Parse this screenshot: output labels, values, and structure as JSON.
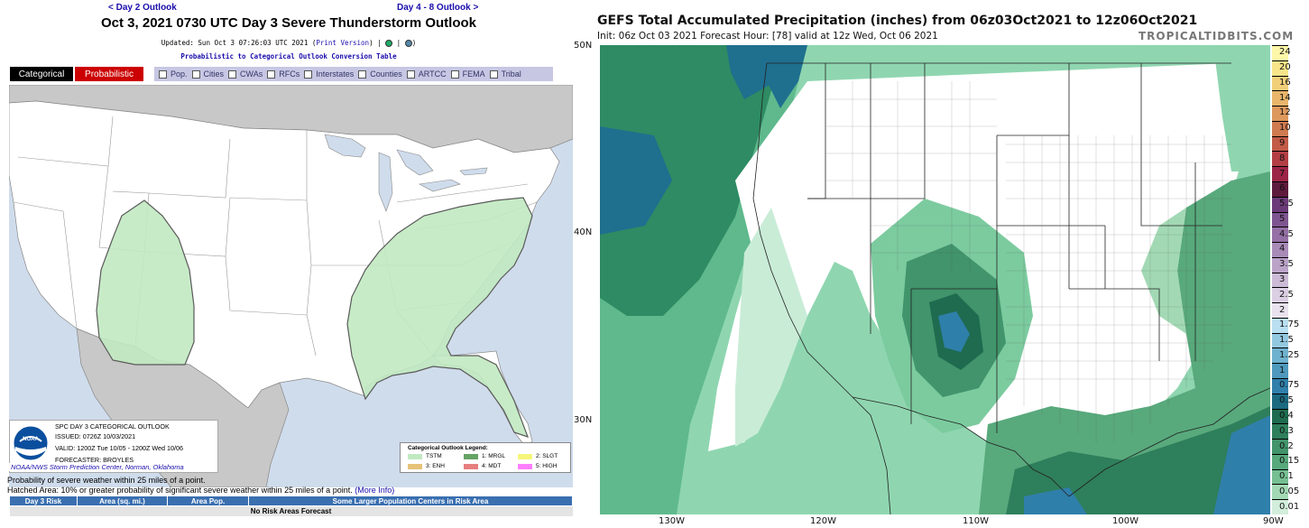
{
  "spc": {
    "prev_link": "< Day 2 Outlook",
    "next_link": "Day 4 - 8 Outlook >",
    "title": "Oct 3, 2021 0730 UTC Day 3 Severe Thunderstorm Outlook",
    "updated": "Updated: Sun Oct 3 07:26:03 UTC 2021 (",
    "print_version": "Print Version",
    "updated_tail": ")  |  ",
    "conversion_link": "Probabilistic to Categorical Outlook Conversion Table",
    "tabs": {
      "categorical": "Categorical",
      "probabilistic": "Probabilistic"
    },
    "overlays": [
      "Pop.",
      "Cities",
      "CWAs",
      "RFCs",
      "Interstates",
      "Counties",
      "ARTCC",
      "FEMA",
      "Tribal"
    ],
    "info": {
      "line1": "SPC DAY 3 CATEGORICAL OUTLOOK",
      "line2": "ISSUED: 0726Z 10/03/2021",
      "line3": "VALID: 1200Z Tue 10/05 - 1200Z Wed 10/06",
      "line4": "FORECASTER: BROYLES"
    },
    "credit": "NOAA/NWS Storm Prediction Center, Norman, Oklahoma",
    "legend": {
      "title": "Categorical Outlook Legend:",
      "items": [
        {
          "label": "TSTM",
          "color": "#c1e9c1"
        },
        {
          "label": "1: MRGL",
          "color": "#66a366"
        },
        {
          "label": "2: SLGT",
          "color": "#f6f67b"
        },
        {
          "label": "3: ENH",
          "color": "#e6c27a"
        },
        {
          "label": "4: MDT",
          "color": "#e67f7f"
        },
        {
          "label": "5: HIGH",
          "color": "#ff7fff"
        }
      ]
    },
    "prob_line1": "Probability of severe weather within 25 miles of a point.",
    "prob_line2": "Hatched Area: 10% or greater probability of significant severe weather within 25 miles of a point.",
    "more_info": "(More Info)",
    "table_headers": [
      "Day 3 Risk",
      "Area (sq. mi.)",
      "Area Pop.",
      "Some Larger Population Centers in Risk Area"
    ],
    "table_row": "No Risk Areas Forecast"
  },
  "gefs": {
    "title": "GEFS Total Accumulated Precipitation (inches) from 06z03Oct2021 to 12z06Oct2021",
    "subtitle": "Init: 06z Oct 03 2021   Forecast Hour: [78]   valid at 12z Wed, Oct 06 2021",
    "brand": "TROPICALTIDBITS.COM",
    "lat_labels": [
      "50N",
      "40N",
      "30N"
    ],
    "lon_labels": [
      "130W",
      "120W",
      "110W",
      "100W",
      "90W"
    ],
    "colorbar": [
      {
        "v": "24",
        "c": "#fdf7a8"
      },
      {
        "v": "20",
        "c": "#f8e58a"
      },
      {
        "v": "16",
        "c": "#f1cf79"
      },
      {
        "v": "14",
        "c": "#e8b56b"
      },
      {
        "v": "12",
        "c": "#dd985c"
      },
      {
        "v": "10",
        "c": "#d07a50"
      },
      {
        "v": "9",
        "c": "#c25b48"
      },
      {
        "v": "8",
        "c": "#b33f45"
      },
      {
        "v": "7",
        "c": "#9c2547"
      },
      {
        "v": "6",
        "c": "#5e1a3c"
      },
      {
        "v": "5.5",
        "c": "#6b3a78"
      },
      {
        "v": "5",
        "c": "#7f5590"
      },
      {
        "v": "4.5",
        "c": "#9570a6"
      },
      {
        "v": "4",
        "c": "#a98bb8"
      },
      {
        "v": "3.5",
        "c": "#bba3c8"
      },
      {
        "v": "3",
        "c": "#ccbad6"
      },
      {
        "v": "2.5",
        "c": "#dbcfe3"
      },
      {
        "v": "2",
        "c": "#e9e1ee"
      },
      {
        "v": "1.75",
        "c": "#b9dff0"
      },
      {
        "v": "1.5",
        "c": "#93c9e0"
      },
      {
        "v": "1.25",
        "c": "#6fb2cf"
      },
      {
        "v": "1",
        "c": "#4e99bd"
      },
      {
        "v": "0.75",
        "c": "#2f7fab"
      },
      {
        "v": "0.5",
        "c": "#1b6a80"
      },
      {
        "v": "0.4",
        "c": "#1e6b4f"
      },
      {
        "v": "0.3",
        "c": "#2e7f5b"
      },
      {
        "v": "0.2",
        "c": "#41946b"
      },
      {
        "v": "0.15",
        "c": "#58a97c"
      },
      {
        "v": "0.1",
        "c": "#75bf91"
      },
      {
        "v": "0.05",
        "c": "#a2d9b4"
      },
      {
        "v": "0.01",
        "c": "#d2eedb"
      }
    ]
  }
}
